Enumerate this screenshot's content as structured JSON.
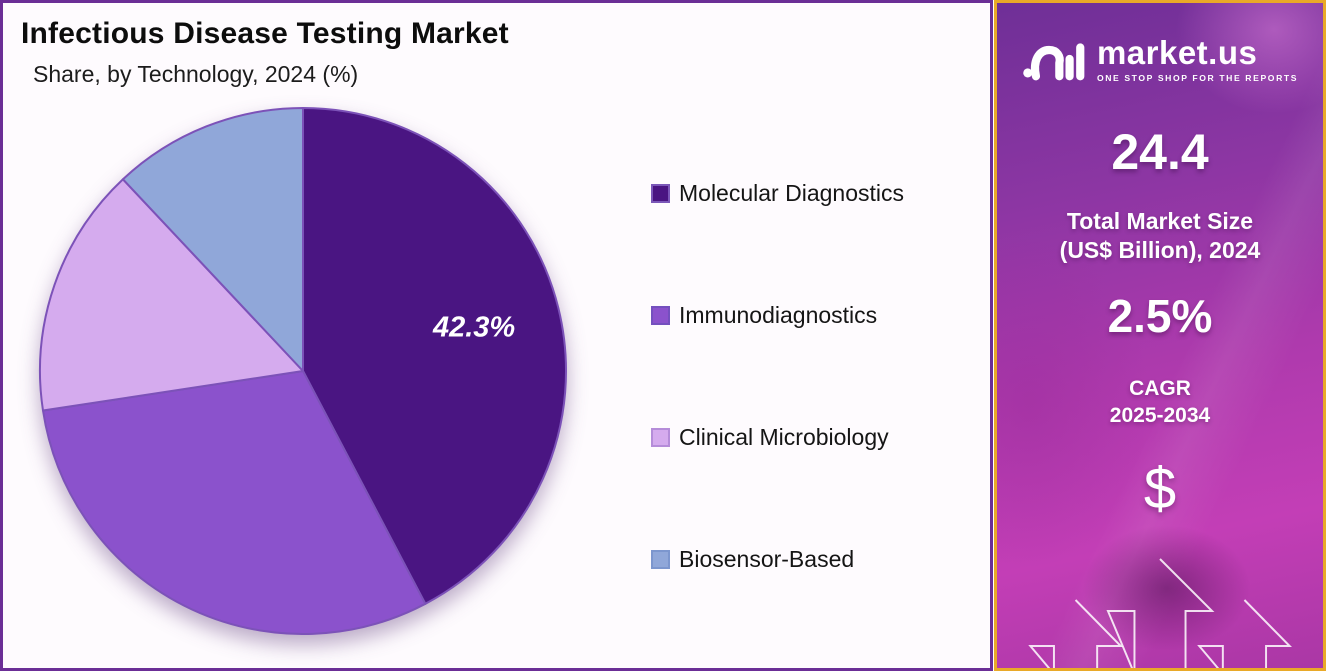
{
  "chart_data": {
    "type": "pie",
    "title": "Infectious Disease Testing Market",
    "subtitle": "Share, by Technology, 2024 (%)",
    "unit": "%",
    "categories": [
      "Molecular Diagnostics",
      "Immunodiagnostics",
      "Clinical Microbiology",
      "Biosensor-Based"
    ],
    "values": [
      42.3,
      30.3,
      15.4,
      12.0
    ],
    "labeled_slice_index": 0,
    "labeled_slice_text": "42.3%",
    "colors": [
      "#4A1582",
      "#8B52CC",
      "#D5ABEE",
      "#90A7D9"
    ],
    "swatch_border_colors": [
      "#7B57B8",
      "#7450BE",
      "#B58CD9",
      "#7C96CE"
    ],
    "slice_stroke_color": "#7C52B8",
    "start_angle_deg": 0,
    "direction": "clockwise",
    "legend_position": "right"
  },
  "panel": {
    "border_color": "#6B2E96",
    "background": "#FEFBFE"
  },
  "sidebar": {
    "brand": {
      "name": "market.us",
      "tagline": "ONE STOP SHOP FOR THE REPORTS"
    },
    "market_size_value": "24.4",
    "market_size_label_line1": "Total Market Size",
    "market_size_label_line2": "(US$ Billion), 2024",
    "cagr_value": "2.5%",
    "cagr_label_line1": "CAGR",
    "cagr_label_line2": "2025-2034",
    "currency_symbol": "$",
    "border_color": "#E9A928",
    "gradient_top": "#6F2F97",
    "gradient_bottom": "#C33EB6"
  }
}
